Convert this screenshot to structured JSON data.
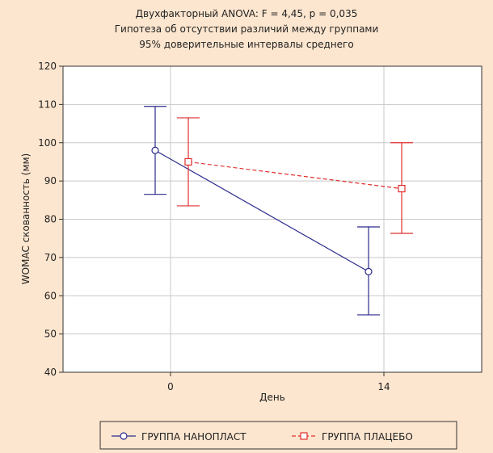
{
  "chart_data": {
    "type": "line",
    "title_lines": [
      "Двухфакторный ANOVA: F = 4,45, p = 0,035",
      "Гипотеза об отсутствии различий между группами",
      "95% доверительные интервалы среднего"
    ],
    "xlabel": "День",
    "ylabel": "WOMAC скованность (мм)",
    "x_categories": [
      "0",
      "14"
    ],
    "ylim": [
      40,
      120
    ],
    "yticks": [
      40,
      50,
      60,
      70,
      80,
      90,
      100,
      110,
      120
    ],
    "grid": true,
    "legend_position": "bottom",
    "series": [
      {
        "name": "ГРУППА НАНОПЛАСТ",
        "color": "#2b2b8c",
        "marker": "circle",
        "line_style": "solid",
        "points": [
          {
            "x": "0",
            "y": 98,
            "ci_low": 86.5,
            "ci_high": 109.5
          },
          {
            "x": "14",
            "y": 66.3,
            "ci_low": 55,
            "ci_high": 78
          }
        ]
      },
      {
        "name": "ГРУППА ПЛАЦЕБО",
        "color": "#e03030",
        "marker": "square",
        "line_style": "dashed",
        "points": [
          {
            "x": "0",
            "y": 95,
            "ci_low": 83.5,
            "ci_high": 106.5
          },
          {
            "x": "14",
            "y": 88,
            "ci_low": 76.3,
            "ci_high": 100
          }
        ]
      }
    ]
  }
}
